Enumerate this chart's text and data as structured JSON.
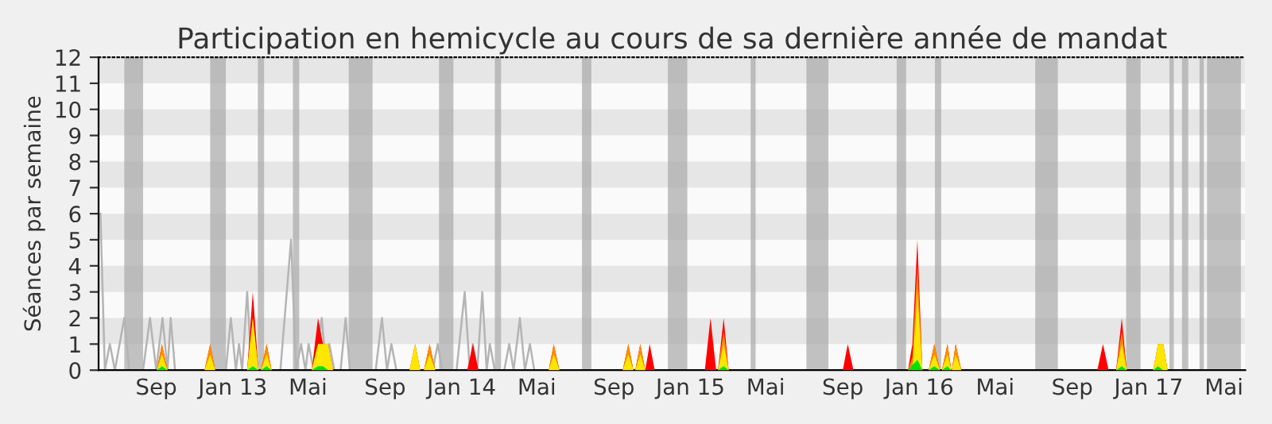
{
  "chart_data": {
    "type": "area",
    "title": "Participation en hemicycle au cours de sa dernière année de mandat",
    "ylabel": "Séances par semaine",
    "xlim": [
      "2012-06-01",
      "2017-06-04"
    ],
    "xticks": [
      {
        "value": "2012-09-01",
        "label": "Sep"
      },
      {
        "value": "2013-01-01",
        "label": "Jan 13"
      },
      {
        "value": "2013-05-01",
        "label": "Mai"
      },
      {
        "value": "2013-09-01",
        "label": "Sep"
      },
      {
        "value": "2014-01-01",
        "label": "Jan 14"
      },
      {
        "value": "2014-05-01",
        "label": "Mai"
      },
      {
        "value": "2014-09-01",
        "label": "Sep"
      },
      {
        "value": "2015-01-01",
        "label": "Jan 15"
      },
      {
        "value": "2015-05-01",
        "label": "Mai"
      },
      {
        "value": "2015-09-01",
        "label": "Sep"
      },
      {
        "value": "2016-01-01",
        "label": "Jan 16"
      },
      {
        "value": "2016-05-01",
        "label": "Mai"
      },
      {
        "value": "2016-09-01",
        "label": "Sep"
      },
      {
        "value": "2017-01-01",
        "label": "Jan 17"
      },
      {
        "value": "2017-05-01",
        "label": "Mai"
      }
    ],
    "ylim": [
      0,
      12
    ],
    "yticks": [
      0,
      1,
      2,
      3,
      4,
      5,
      6,
      7,
      8,
      9,
      10,
      11,
      12
    ],
    "grid": false,
    "bands": [
      {
        "axis": "y",
        "from": 1,
        "to": 2,
        "color": "#e6e6e6"
      },
      {
        "axis": "y",
        "from": 3,
        "to": 4,
        "color": "#e6e6e6"
      },
      {
        "axis": "y",
        "from": 5,
        "to": 6,
        "color": "#e6e6e6"
      },
      {
        "axis": "y",
        "from": 7,
        "to": 8,
        "color": "#e6e6e6"
      },
      {
        "axis": "y",
        "from": 9,
        "to": 10,
        "color": "#e6e6e6"
      },
      {
        "axis": "y",
        "from": 11,
        "to": 12,
        "color": "#e6e6e6"
      },
      {
        "axis": "x",
        "from": "2012-07-12",
        "to": "2012-08-11",
        "color": "#a8a8a8"
      },
      {
        "axis": "x",
        "from": "2012-11-26",
        "to": "2012-12-21",
        "color": "#a8a8a8"
      },
      {
        "axis": "x",
        "from": "2013-02-10",
        "to": "2013-02-20",
        "color": "#a8a8a8"
      },
      {
        "axis": "x",
        "from": "2013-04-07",
        "to": "2013-04-17",
        "color": "#a8a8a8"
      },
      {
        "axis": "x",
        "from": "2013-07-05",
        "to": "2013-08-12",
        "color": "#a8a8a8"
      },
      {
        "axis": "x",
        "from": "2013-11-26",
        "to": "2013-12-19",
        "color": "#a8a8a8"
      },
      {
        "axis": "x",
        "from": "2014-02-23",
        "to": "2014-03-05",
        "color": "#a8a8a8"
      },
      {
        "axis": "x",
        "from": "2014-07-12",
        "to": "2014-07-27",
        "color": "#a8a8a8"
      },
      {
        "axis": "x",
        "from": "2014-11-26",
        "to": "2014-12-27",
        "color": "#a8a8a8"
      },
      {
        "axis": "x",
        "from": "2015-04-07",
        "to": "2015-04-15",
        "color": "#a8a8a8"
      },
      {
        "axis": "x",
        "from": "2015-07-05",
        "to": "2015-08-09",
        "color": "#a8a8a8"
      },
      {
        "axis": "x",
        "from": "2015-11-26",
        "to": "2015-12-11",
        "color": "#a8a8a8"
      },
      {
        "axis": "x",
        "from": "2016-01-26",
        "to": "2016-02-05",
        "color": "#a8a8a8"
      },
      {
        "axis": "x",
        "from": "2016-07-04",
        "to": "2016-08-09",
        "color": "#a8a8a8"
      },
      {
        "axis": "x",
        "from": "2016-11-26",
        "to": "2016-12-19",
        "color": "#a8a8a8"
      },
      {
        "axis": "x",
        "from": "2017-02-03",
        "to": "2017-02-10",
        "color": "#a8a8a8"
      },
      {
        "axis": "x",
        "from": "2017-02-23",
        "to": "2017-03-05",
        "color": "#a8a8a8"
      },
      {
        "axis": "x",
        "from": "2017-03-23",
        "to": "2017-03-30",
        "color": "#a8a8a8"
      },
      {
        "axis": "x",
        "from": "2017-04-04",
        "to": "2017-05-28",
        "color": "#a8a8a8"
      }
    ],
    "series": [
      {
        "type": "line",
        "color": "#b4b4b4",
        "x": [
          "2012-06-04",
          "2012-06-11",
          "2012-06-19",
          "2012-06-27",
          "2012-07-12",
          "2012-07-20",
          "2012-08-11",
          "2012-08-22",
          "2012-09-01",
          "2012-09-11",
          "2012-09-19",
          "2012-09-24",
          "2012-10-01",
          "2012-12-21",
          "2012-12-29",
          "2013-01-06",
          "2013-01-11",
          "2013-01-16",
          "2013-01-24",
          "2013-01-31",
          "2013-03-18",
          "2013-04-04",
          "2013-04-12",
          "2013-04-20",
          "2013-04-27",
          "2013-05-02",
          "2013-05-10",
          "2013-05-23",
          "2013-05-30",
          "2013-06-04",
          "2013-06-12",
          "2013-06-22",
          "2013-06-30",
          "2013-07-07",
          "2013-08-17",
          "2013-08-27",
          "2013-09-04",
          "2013-09-11",
          "2013-09-19",
          "2013-11-16",
          "2013-11-24",
          "2013-12-01",
          "2013-12-24",
          "2014-01-06",
          "2014-01-14",
          "2014-01-19",
          "2014-01-26",
          "2014-02-03",
          "2014-02-10",
          "2014-02-15",
          "2014-02-23",
          "2014-03-10",
          "2014-03-18",
          "2014-03-25",
          "2014-04-04",
          "2014-04-12",
          "2014-04-20",
          "2014-04-27"
        ],
        "values": [
          6,
          0,
          1,
          0,
          2,
          0,
          0,
          2,
          0,
          2,
          0,
          2,
          0,
          0,
          2,
          0,
          1,
          0,
          3,
          0,
          0,
          5,
          0,
          1,
          0,
          1,
          0,
          2,
          0,
          1,
          0,
          0,
          2,
          0,
          0,
          2,
          0,
          1,
          0,
          0,
          1,
          0,
          0,
          3,
          0,
          1,
          0,
          3,
          0,
          1,
          0,
          0,
          1,
          0,
          2,
          0,
          1,
          0
        ]
      },
      {
        "color": "#ff0000",
        "x": [
          "2012-09-02",
          "2012-09-10",
          "2012-09-19",
          "2012-11-17",
          "2012-11-26",
          "2012-12-04",
          "2013-01-24",
          "2013-02-02",
          "2013-02-11",
          "2013-02-15",
          "2013-02-24",
          "2013-03-04",
          "2013-05-07",
          "2013-05-17",
          "2013-05-25",
          "2013-06-02",
          "2013-06-10",
          "2013-10-10",
          "2013-10-19",
          "2013-10-27",
          "2013-11-02",
          "2013-11-11",
          "2013-11-20",
          "2014-01-10",
          "2014-01-19",
          "2014-01-28",
          "2014-05-20",
          "2014-05-28",
          "2014-06-06",
          "2014-09-15",
          "2014-09-24",
          "2014-10-02",
          "2014-10-05",
          "2014-10-13",
          "2014-10-21",
          "2014-10-28",
          "2014-11-05",
          "2015-01-24",
          "2015-02-02",
          "2015-02-11",
          "2015-02-14",
          "2015-02-23",
          "2015-03-03",
          "2015-09-01",
          "2015-09-09",
          "2015-09-18",
          "2015-12-14",
          "2015-12-21",
          "2015-12-29",
          "2016-01-06",
          "2016-01-16",
          "2016-01-25",
          "2016-02-03",
          "2016-02-06",
          "2016-02-15",
          "2016-02-21",
          "2016-02-22",
          "2016-02-28",
          "2016-03-08",
          "2016-10-11",
          "2016-10-20",
          "2016-10-29",
          "2016-11-10",
          "2016-11-19",
          "2016-11-27",
          "2017-01-08",
          "2017-01-16",
          "2017-01-24",
          "2017-01-31"
        ],
        "values": [
          0,
          1,
          0,
          0,
          1,
          0,
          0,
          3,
          0,
          0,
          1,
          0,
          0,
          2,
          1,
          1,
          0,
          0,
          1,
          0,
          0,
          1,
          0,
          0,
          1,
          0,
          0,
          1,
          0,
          0,
          1,
          0,
          0,
          1,
          0,
          1,
          0,
          0,
          2,
          0,
          0,
          2,
          0,
          0,
          1,
          0,
          0,
          1,
          5,
          0,
          0,
          1,
          0,
          0,
          1,
          0,
          0,
          1,
          0,
          0,
          1,
          0,
          0,
          2,
          0,
          0,
          1,
          1,
          0
        ]
      },
      {
        "color": "#ff8c00",
        "x": [
          "2012-09-02",
          "2012-09-10",
          "2012-09-19",
          "2012-11-17",
          "2012-11-26",
          "2012-12-04",
          "2013-01-24",
          "2013-02-02",
          "2013-02-11",
          "2013-02-15",
          "2013-02-24",
          "2013-03-04",
          "2013-05-07",
          "2013-05-17",
          "2013-05-25",
          "2013-06-02",
          "2013-06-10",
          "2013-10-10",
          "2013-10-19",
          "2013-10-27",
          "2013-11-02",
          "2013-11-11",
          "2013-11-20",
          "2014-05-20",
          "2014-05-28",
          "2014-06-06",
          "2014-09-15",
          "2014-09-24",
          "2014-10-02",
          "2014-10-05",
          "2014-10-13",
          "2014-10-21",
          "2015-02-14",
          "2015-02-23",
          "2015-03-03",
          "2015-12-14",
          "2015-12-21",
          "2015-12-29",
          "2016-01-06",
          "2016-01-16",
          "2016-01-25",
          "2016-02-03",
          "2016-02-06",
          "2016-02-15",
          "2016-02-21",
          "2016-02-22",
          "2016-02-28",
          "2016-03-08",
          "2016-11-10",
          "2016-11-19",
          "2016-11-27",
          "2017-01-08",
          "2017-01-16",
          "2017-01-24",
          "2017-01-31"
        ],
        "values": [
          0,
          1,
          0,
          0,
          1,
          0,
          0,
          2,
          0,
          0,
          1,
          0,
          0,
          1,
          1,
          1,
          0,
          0,
          1,
          0,
          0,
          1,
          0,
          0,
          1,
          0,
          0,
          1,
          0,
          0,
          1,
          0,
          0,
          1.5,
          0,
          0,
          0.5,
          4,
          0,
          0,
          1,
          0,
          0,
          1,
          0,
          0,
          1,
          0,
          0,
          1.5,
          0,
          0,
          1,
          1,
          0
        ]
      },
      {
        "color": "#ffe600",
        "x": [
          "2012-09-02",
          "2012-09-10",
          "2012-09-19",
          "2012-11-17",
          "2012-11-26",
          "2012-12-04",
          "2013-01-24",
          "2013-02-02",
          "2013-02-11",
          "2013-02-15",
          "2013-02-24",
          "2013-03-04",
          "2013-05-07",
          "2013-05-17",
          "2013-05-25",
          "2013-06-02",
          "2013-06-10",
          "2013-10-10",
          "2013-10-19",
          "2013-10-27",
          "2013-11-02",
          "2013-11-11",
          "2013-11-20",
          "2014-05-20",
          "2014-05-28",
          "2014-06-06",
          "2014-09-15",
          "2014-09-24",
          "2014-10-02",
          "2014-10-05",
          "2014-10-13",
          "2014-10-21",
          "2015-02-14",
          "2015-02-23",
          "2015-03-03",
          "2015-12-14",
          "2015-12-21",
          "2015-12-29",
          "2016-01-06",
          "2016-01-16",
          "2016-01-25",
          "2016-02-03",
          "2016-02-06",
          "2016-02-15",
          "2016-02-21",
          "2016-02-22",
          "2016-02-28",
          "2016-03-08",
          "2016-11-10",
          "2016-11-19",
          "2016-11-27",
          "2017-01-08",
          "2017-01-16",
          "2017-01-24",
          "2017-01-31"
        ],
        "values": [
          0,
          0.6,
          0,
          0,
          0.6,
          0,
          0,
          2,
          0,
          0,
          0.6,
          0,
          0,
          1,
          1,
          1,
          0,
          0,
          1,
          0,
          0,
          0.6,
          0,
          0,
          0.6,
          0,
          0,
          0.6,
          0,
          0,
          0.6,
          0,
          0,
          1,
          0,
          0,
          0,
          3,
          0,
          0,
          0.6,
          0,
          0,
          0.6,
          0,
          0,
          0.6,
          0,
          0,
          1,
          0,
          0,
          1,
          1,
          0
        ]
      },
      {
        "color": "#00e000",
        "x": [
          "2012-09-02",
          "2012-09-10",
          "2012-09-19",
          "2013-01-24",
          "2013-02-02",
          "2013-02-11",
          "2013-02-15",
          "2013-02-24",
          "2013-03-04",
          "2013-05-07",
          "2013-05-17",
          "2013-05-25",
          "2013-06-02",
          "2015-02-14",
          "2015-02-23",
          "2015-03-03",
          "2015-12-14",
          "2015-12-29",
          "2016-01-06",
          "2016-01-16",
          "2016-01-25",
          "2016-02-03",
          "2016-02-06",
          "2016-02-15",
          "2016-02-21",
          "2016-11-10",
          "2016-11-19",
          "2016-11-27",
          "2017-01-08",
          "2017-01-16",
          "2017-01-24"
        ],
        "values": [
          0,
          0.15,
          0,
          0,
          0.15,
          0,
          0,
          0.15,
          0,
          0,
          0.15,
          0.15,
          0,
          0,
          0.15,
          0,
          0,
          0.4,
          0,
          0,
          0.15,
          0,
          0,
          0.15,
          0,
          0,
          0.15,
          0,
          0,
          0.15,
          0
        ]
      }
    ]
  }
}
